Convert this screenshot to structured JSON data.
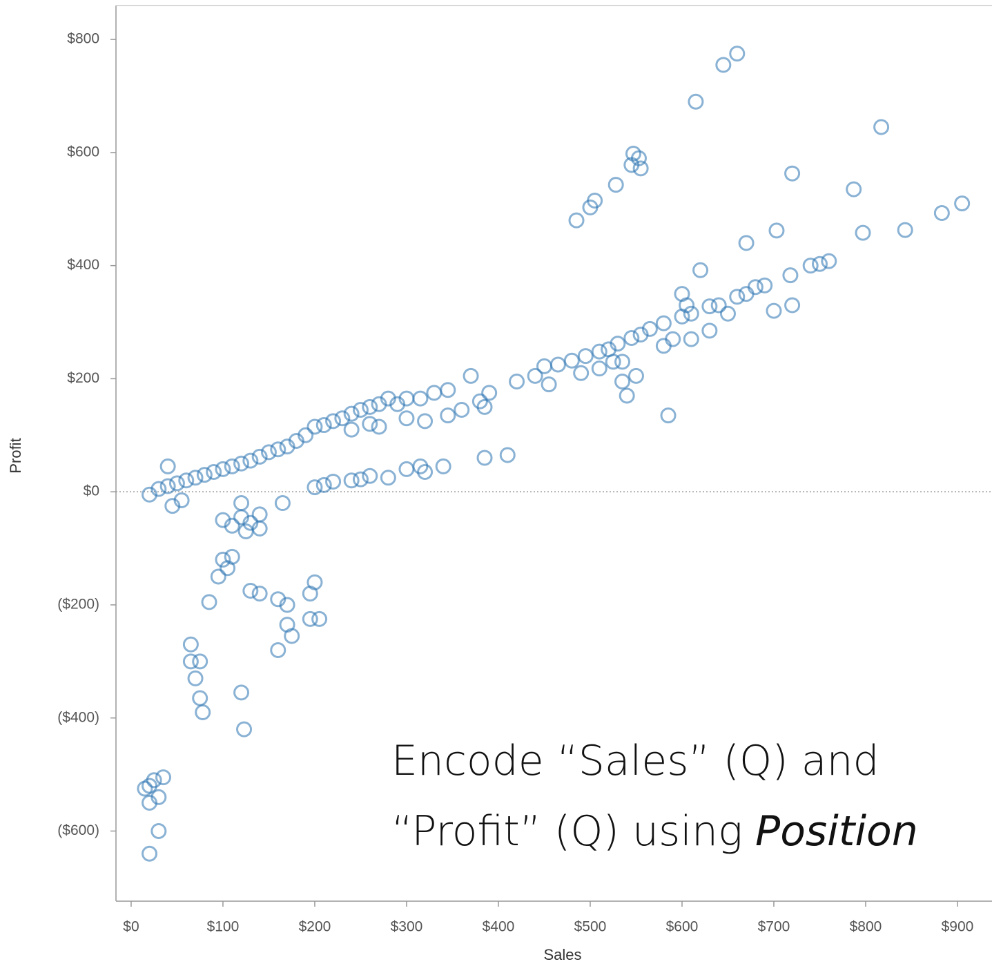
{
  "chart_data": {
    "type": "scatter",
    "x_label": "Sales",
    "y_label": "Profit",
    "annotation": [
      "Encode “Sales” (Q) and",
      "“Profit” (Q) using",
      "Position"
    ],
    "color": "#2a73b0",
    "zero_line": true,
    "grid": false,
    "xlim": [
      -16.5,
      937.6
    ],
    "ylim": [
      -724,
      860
    ],
    "xticks": [
      {
        "value": 0,
        "label": "$0"
      },
      {
        "value": 100,
        "label": "$100"
      },
      {
        "value": 200,
        "label": "$200"
      },
      {
        "value": 300,
        "label": "$300"
      },
      {
        "value": 400,
        "label": "$400"
      },
      {
        "value": 500,
        "label": "$500"
      },
      {
        "value": 600,
        "label": "$600"
      },
      {
        "value": 700,
        "label": "$700"
      },
      {
        "value": 800,
        "label": "$800"
      },
      {
        "value": 900,
        "label": "$900"
      }
    ],
    "yticks": [
      {
        "value": -600,
        "label": "($600)"
      },
      {
        "value": -400,
        "label": "($400)"
      },
      {
        "value": -200,
        "label": "($200)"
      },
      {
        "value": 0,
        "label": "$0"
      },
      {
        "value": 200,
        "label": "$200"
      },
      {
        "value": 400,
        "label": "$400"
      },
      {
        "value": 600,
        "label": "$600"
      },
      {
        "value": 800,
        "label": "$800"
      }
    ],
    "x": [
      660,
      645,
      615,
      547,
      553,
      545,
      555,
      528,
      505,
      500,
      485,
      817,
      720,
      787,
      797,
      703,
      670,
      620,
      600,
      605,
      905,
      883,
      843,
      760,
      750,
      740,
      718,
      690,
      680,
      670,
      660,
      640,
      630,
      610,
      600,
      580,
      565,
      555,
      545,
      530,
      520,
      510,
      495,
      480,
      465,
      450,
      440,
      420,
      390,
      380,
      370,
      345,
      330,
      315,
      300,
      290,
      280,
      270,
      260,
      250,
      240,
      230,
      220,
      210,
      200,
      190,
      180,
      170,
      160,
      150,
      140,
      130,
      120,
      110,
      100,
      90,
      80,
      70,
      60,
      50,
      40,
      40,
      30,
      20,
      45,
      55,
      490,
      510,
      525,
      535,
      580,
      455,
      320,
      300,
      270,
      260,
      240,
      345,
      360,
      385,
      200,
      210,
      220,
      240,
      250,
      260,
      280,
      300,
      315,
      320,
      340,
      385,
      410,
      590,
      610,
      630,
      650,
      700,
      720,
      585,
      540,
      535,
      550,
      100,
      110,
      120,
      125,
      130,
      140,
      140,
      165,
      120,
      110,
      100,
      105,
      95,
      85,
      130,
      140,
      160,
      170,
      170,
      175,
      160,
      195,
      200,
      195,
      205,
      65,
      65,
      75,
      70,
      75,
      78,
      120,
      123,
      20,
      25,
      35,
      30,
      20,
      15,
      30,
      20
    ],
    "values": [
      775,
      755,
      690,
      598,
      590,
      578,
      572,
      543,
      515,
      503,
      480,
      645,
      563,
      535,
      458,
      462,
      440,
      392,
      350,
      330,
      510,
      493,
      463,
      408,
      403,
      400,
      383,
      365,
      362,
      350,
      345,
      330,
      328,
      315,
      310,
      298,
      288,
      278,
      272,
      262,
      252,
      248,
      240,
      232,
      225,
      222,
      205,
      195,
      175,
      160,
      205,
      180,
      175,
      165,
      165,
      155,
      165,
      155,
      150,
      145,
      138,
      130,
      125,
      118,
      115,
      100,
      90,
      80,
      75,
      70,
      62,
      55,
      50,
      45,
      40,
      35,
      30,
      25,
      20,
      15,
      45,
      10,
      5,
      -5,
      -25,
      -15,
      210,
      218,
      230,
      230,
      258,
      190,
      125,
      130,
      115,
      120,
      110,
      135,
      145,
      150,
      8,
      12,
      18,
      20,
      22,
      28,
      25,
      40,
      45,
      35,
      45,
      60,
      65,
      270,
      270,
      285,
      315,
      320,
      330,
      135,
      170,
      195,
      205,
      -50,
      -60,
      -45,
      -70,
      -55,
      -40,
      -65,
      -20,
      -20,
      -115,
      -120,
      -135,
      -150,
      -195,
      -175,
      -180,
      -190,
      -200,
      -235,
      -255,
      -280,
      -180,
      -160,
      -225,
      -225,
      -270,
      -300,
      -300,
      -330,
      -365,
      -390,
      -355,
      -420,
      -520,
      -510,
      -505,
      -540,
      -550,
      -525,
      -600,
      -640
    ]
  }
}
